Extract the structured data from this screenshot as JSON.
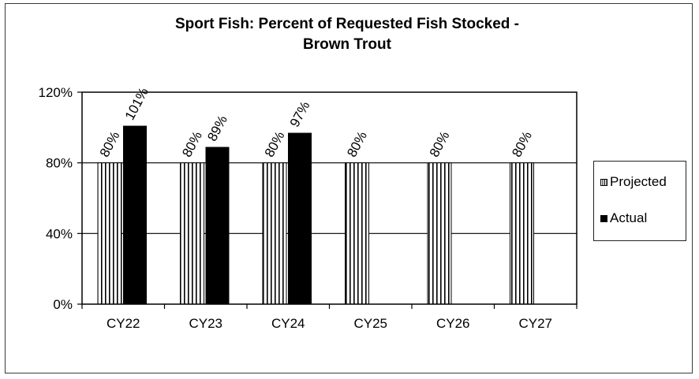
{
  "chart_data": {
    "type": "bar",
    "title": "Sport Fish: Percent of Requested Fish Stocked -",
    "title_line2": "Brown Trout",
    "categories": [
      "CY22",
      "CY23",
      "CY24",
      "CY25",
      "CY26",
      "CY27"
    ],
    "series": [
      {
        "name": "Projected",
        "values": [
          80,
          80,
          80,
          80,
          80,
          80
        ],
        "labels": [
          "80%",
          "80%",
          "80%",
          "80%",
          "80%",
          "80%"
        ],
        "pattern": "vertical-stripes"
      },
      {
        "name": "Actual",
        "values": [
          101,
          89,
          97,
          null,
          null,
          null
        ],
        "labels": [
          "101%",
          "89%",
          "97%",
          "",
          "",
          ""
        ],
        "color": "#000000"
      }
    ],
    "ylim": [
      0,
      120
    ],
    "yticks": [
      "0%",
      "40%",
      "80%",
      "120%"
    ],
    "ytick_values": [
      0,
      40,
      80,
      120
    ],
    "grid": true,
    "legend_position": "right",
    "xlabel": "",
    "ylabel": ""
  }
}
